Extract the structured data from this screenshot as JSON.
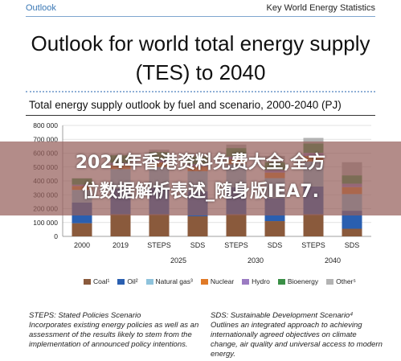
{
  "header": {
    "left_label": "Outlook",
    "right_label": "Key World Energy Statistics"
  },
  "slide_title_line1": "Outlook for world total energy supply",
  "slide_title_line2": "(TES) to 2040",
  "banner": {
    "line1": "2024年香港资料免费大全,全方",
    "line2": "位数据解析表述_随身版IEA7."
  },
  "notes": {
    "left_title": "STEPS: Stated Policies Scenario",
    "left_body": "Incorporates existing energy policies as well as an assessment of the results likely to stem from the implementation of announced policy intentions.",
    "right_title": "SDS: Sustainable Development Scenario⁴",
    "right_body": "Outlines an integrated approach to achieving internationally agreed objectives on climate change, air quality and universal access to modern energy."
  },
  "chart_data": {
    "type": "bar",
    "stacked": true,
    "title": "Total energy supply outlook by fuel and scenario, 2000-2040 (PJ)",
    "ylim": [
      0,
      800000
    ],
    "yticks": [
      0,
      100000,
      200000,
      300000,
      400000,
      500000,
      600000,
      700000,
      800000
    ],
    "ytick_labels": [
      "0",
      "100 000",
      "200 000",
      "300 000",
      "400 000",
      "500 000",
      "600 000",
      "700 000",
      "800 000"
    ],
    "categories": [
      "2000",
      "2019",
      "STEPS",
      "SDS",
      "STEPS",
      "SDS",
      "STEPS",
      "SDS"
    ],
    "groups": [
      {
        "label": "2025",
        "start": 2,
        "end": 3
      },
      {
        "label": "2030",
        "start": 4,
        "end": 5
      },
      {
        "label": "2040",
        "start": 6,
        "end": 7
      }
    ],
    "series": [
      {
        "name": "Coal¹",
        "color": "#8a5a3c",
        "values": [
          95000,
          160000,
          160000,
          145000,
          160000,
          110000,
          160000,
          55000
        ]
      },
      {
        "name": "Oil²",
        "color": "#2a5fb0",
        "values": [
          150000,
          185000,
          190000,
          180000,
          195000,
          165000,
          200000,
          130000
        ]
      },
      {
        "name": "Natural gas³",
        "color": "#8ec3dc",
        "values": [
          90000,
          140000,
          150000,
          145000,
          165000,
          145000,
          180000,
          120000
        ]
      },
      {
        "name": "Nuclear",
        "color": "#e07a28",
        "values": [
          28000,
          30000,
          33000,
          34000,
          36000,
          40000,
          40000,
          50000
        ]
      },
      {
        "name": "Hydro",
        "color": "#9b7bc2",
        "values": [
          10000,
          15000,
          17000,
          17000,
          19000,
          19000,
          22000,
          25000
        ]
      },
      {
        "name": "Bioenergy",
        "color": "#3a8f46",
        "values": [
          45000,
          55000,
          58000,
          55000,
          62000,
          56000,
          68000,
          60000
        ]
      },
      {
        "name": "Other⁵",
        "color": "#b3b3b3",
        "values": [
          2000,
          10000,
          18000,
          24000,
          25000,
          45000,
          40000,
          95000
        ]
      }
    ]
  }
}
